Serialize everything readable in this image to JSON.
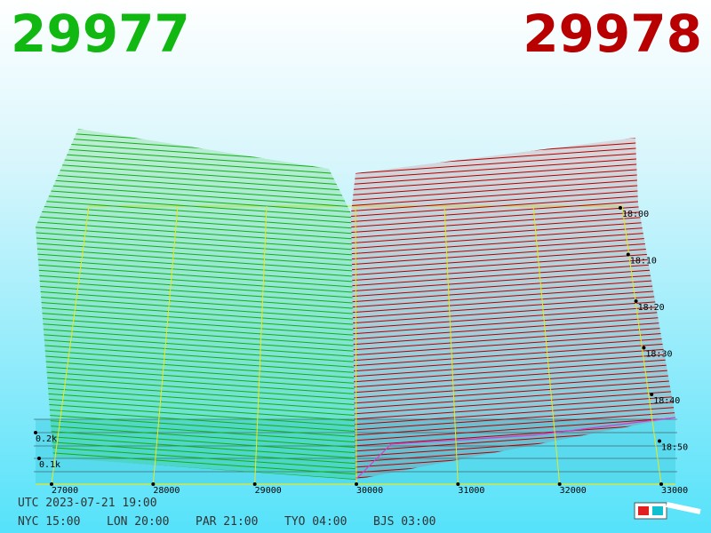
{
  "header": {
    "bid": "29977",
    "ask": "29978"
  },
  "axes": {
    "price_labels": [
      "27000",
      "28000",
      "29000",
      "30000",
      "31000",
      "32000",
      "33000"
    ],
    "depth_labels": [
      "0.2k",
      "0.1k"
    ],
    "time_labels": [
      "18:00",
      "18:10",
      "18:20",
      "18:30",
      "18:40",
      "18:50"
    ]
  },
  "footer": {
    "utc": "UTC 2023-07-21 19:00",
    "zones": [
      "NYC 15:00",
      "LON 20:00",
      "PAR 21:00",
      "TYO 04:00",
      "BJS 03:00"
    ]
  }
}
